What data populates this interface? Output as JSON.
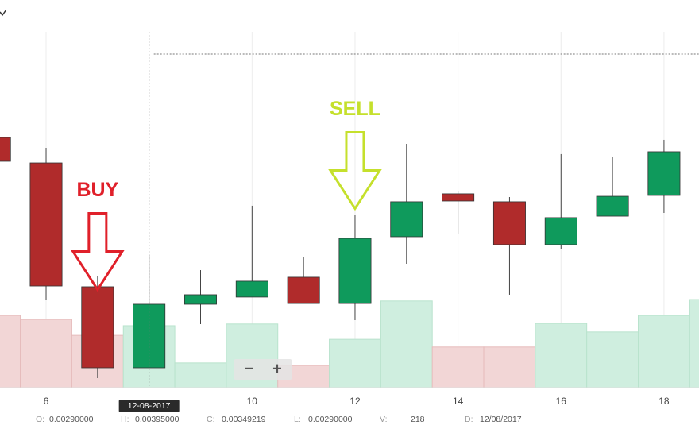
{
  "chart_data": {
    "type": "candlestick",
    "x": [
      5,
      6,
      7,
      8,
      9,
      10,
      11,
      12,
      13,
      14,
      15,
      16,
      17,
      18,
      19
    ],
    "open": [
      0.005046,
      0.004809,
      0.003655,
      0.0029,
      0.003492,
      0.003559,
      0.003744,
      0.003499,
      0.004121,
      0.004521,
      0.004447,
      0.004047,
      0.004313,
      0.004506,
      null
    ],
    "high": [
      0.005046,
      0.00495,
      0.003751,
      0.00395,
      0.00381,
      0.00441,
      0.003936,
      0.004328,
      0.004987,
      0.00455,
      0.004491,
      0.004891,
      0.004861,
      0.005024,
      null
    ],
    "low": [
      0.004824,
      0.003529,
      0.002804,
      0.0029,
      0.003307,
      0.003559,
      0.003499,
      0.003344,
      0.003869,
      0.004151,
      0.003581,
      0.00401,
      0.004313,
      0.004343,
      null
    ],
    "close": [
      0.004824,
      0.003662,
      0.0029,
      0.00349219,
      0.003581,
      0.003707,
      0.003499,
      0.004106,
      0.004447,
      0.004454,
      0.004047,
      0.004299,
      0.004498,
      0.004913,
      null
    ],
    "volume": [
      254,
      240,
      184,
      218,
      87,
      224,
      78,
      170,
      305,
      143,
      143,
      226,
      196,
      254,
      310
    ],
    "xlim": [
      5.105,
      18.68
    ],
    "ylim": [
      0.002715,
      0.00603
    ],
    "vlim": [
      0,
      500
    ],
    "xticks": [
      6,
      10,
      12,
      14,
      16,
      18
    ],
    "grid": true,
    "up_color": "#0f9a5c",
    "down_color": "#b02b2b",
    "volume_up_color": "#cfeedf",
    "volume_down_color": "#f2d6d6",
    "annotations": [
      {
        "text": "BUY",
        "x": 7,
        "y": 0.004546,
        "color": "#e0202a"
      },
      {
        "text": "SELL",
        "x": 12,
        "y": 0.005301,
        "color": "#c5e02c"
      }
    ],
    "crosshair": {
      "x": 8,
      "y": 0.005823,
      "label": "12-08-2017"
    }
  },
  "readout": [
    {
      "label": "O:",
      "value": "0.00290000"
    },
    {
      "label": "H:",
      "value": "0.00395000"
    },
    {
      "label": "C:",
      "value": "0.00349219"
    },
    {
      "label": "L:",
      "value": "0.00290000"
    },
    {
      "label": "V:",
      "value": "218"
    },
    {
      "label": "D:",
      "value": "12/08/2017"
    }
  ],
  "zoom": {
    "out": "−",
    "in": "+"
  }
}
